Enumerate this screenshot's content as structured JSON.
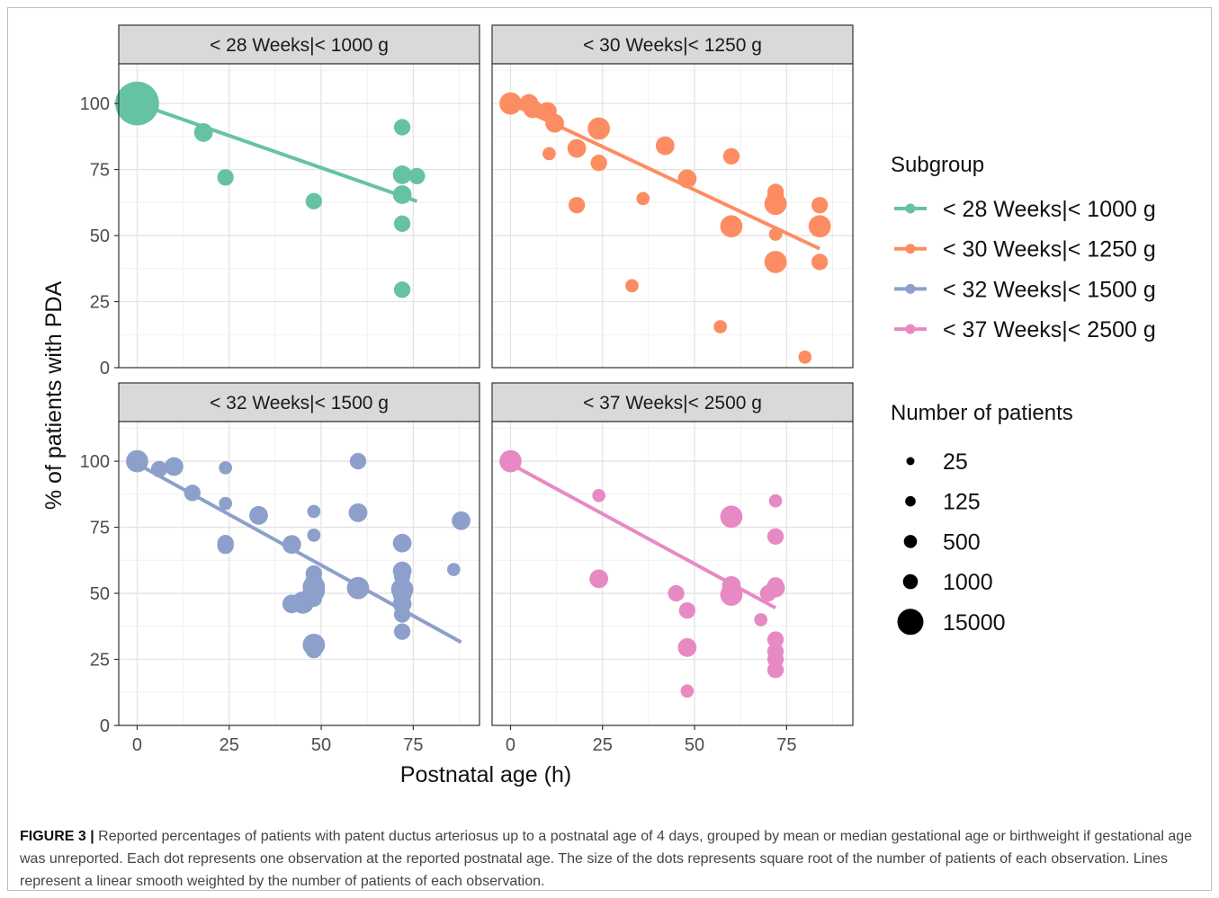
{
  "figure": {
    "caption_label": "FIGURE 3 |",
    "caption_text": "Reported percentages of patients with patent ductus arteriosus up to a postnatal age of 4 days, grouped by mean or median gestational age or birthweight if gestational age was unreported. Each dot represents one observation at the reported postnatal age. The size of the dots represents square root of the number of patients of each observation. Lines represent a linear smooth weighted by the number of patients of each observation."
  },
  "chart_data": {
    "type": "scatter",
    "xlabel": "Postnatal age (h)",
    "ylabel": "% of patients with PDA",
    "xlim": [
      -5,
      93
    ],
    "ylim": [
      0,
      115
    ],
    "x_ticks": [
      0,
      25,
      50,
      75
    ],
    "y_ticks": [
      0,
      25,
      50,
      75,
      100
    ],
    "grid": true,
    "legend_position": "right",
    "legend": {
      "color_title": "Subgroup",
      "size_title": "Number of patients",
      "size_levels": [
        25,
        125,
        500,
        1000,
        15000
      ]
    },
    "panels": [
      {
        "title": "< 28 Weeks|< 1000 g",
        "color": "#66c2a5",
        "fit": [
          [
            0,
            100
          ],
          [
            76,
            63
          ]
        ],
        "points": [
          {
            "x": 0,
            "y": 100,
            "n": 15000
          },
          {
            "x": 18,
            "y": 89,
            "n": 500
          },
          {
            "x": 24,
            "y": 72,
            "n": 300
          },
          {
            "x": 48,
            "y": 63,
            "n": 300
          },
          {
            "x": 72,
            "y": 91,
            "n": 300
          },
          {
            "x": 72,
            "y": 73,
            "n": 500
          },
          {
            "x": 76,
            "y": 72.5,
            "n": 300
          },
          {
            "x": 72,
            "y": 65.5,
            "n": 500
          },
          {
            "x": 72,
            "y": 54.5,
            "n": 300
          },
          {
            "x": 72,
            "y": 29.5,
            "n": 300
          }
        ]
      },
      {
        "title": "< 30 Weeks|< 1250 g",
        "color": "#fc8d62",
        "fit": [
          [
            0,
            100
          ],
          [
            84,
            45
          ]
        ],
        "points": [
          {
            "x": 0,
            "y": 100,
            "n": 1000
          },
          {
            "x": 5,
            "y": 100,
            "n": 500
          },
          {
            "x": 6,
            "y": 98,
            "n": 500
          },
          {
            "x": 10,
            "y": 97,
            "n": 500
          },
          {
            "x": 12,
            "y": 92.5,
            "n": 500
          },
          {
            "x": 10.5,
            "y": 81,
            "n": 125
          },
          {
            "x": 24,
            "y": 90.5,
            "n": 1000
          },
          {
            "x": 18,
            "y": 83,
            "n": 500
          },
          {
            "x": 24,
            "y": 77.5,
            "n": 300
          },
          {
            "x": 18,
            "y": 61.5,
            "n": 300
          },
          {
            "x": 36,
            "y": 64,
            "n": 125
          },
          {
            "x": 42,
            "y": 84,
            "n": 500
          },
          {
            "x": 48,
            "y": 71.5,
            "n": 500
          },
          {
            "x": 60,
            "y": 80,
            "n": 300
          },
          {
            "x": 60,
            "y": 53.5,
            "n": 1000
          },
          {
            "x": 33,
            "y": 31,
            "n": 125
          },
          {
            "x": 57,
            "y": 15.5,
            "n": 125
          },
          {
            "x": 72,
            "y": 66.5,
            "n": 300
          },
          {
            "x": 72,
            "y": 65,
            "n": 300
          },
          {
            "x": 72,
            "y": 62,
            "n": 1000
          },
          {
            "x": 72,
            "y": 50.5,
            "n": 125
          },
          {
            "x": 72,
            "y": 40,
            "n": 1000
          },
          {
            "x": 84,
            "y": 61.5,
            "n": 300
          },
          {
            "x": 84,
            "y": 53.5,
            "n": 1000
          },
          {
            "x": 84,
            "y": 40,
            "n": 300
          },
          {
            "x": 80,
            "y": 4,
            "n": 125
          }
        ]
      },
      {
        "title": "< 32 Weeks|< 1500 g",
        "color": "#8da0cb",
        "fit": [
          [
            0,
            99
          ],
          [
            88,
            31.5
          ]
        ],
        "points": [
          {
            "x": 0,
            "y": 100,
            "n": 1000
          },
          {
            "x": 6,
            "y": 97,
            "n": 300
          },
          {
            "x": 10,
            "y": 98,
            "n": 500
          },
          {
            "x": 24,
            "y": 97.5,
            "n": 125
          },
          {
            "x": 15,
            "y": 88,
            "n": 300
          },
          {
            "x": 24,
            "y": 84,
            "n": 125
          },
          {
            "x": 33,
            "y": 79.5,
            "n": 500
          },
          {
            "x": 24,
            "y": 69,
            "n": 300
          },
          {
            "x": 24,
            "y": 68,
            "n": 300
          },
          {
            "x": 42,
            "y": 68.5,
            "n": 500
          },
          {
            "x": 42,
            "y": 46,
            "n": 500
          },
          {
            "x": 45,
            "y": 46.5,
            "n": 1000
          },
          {
            "x": 48,
            "y": 81,
            "n": 125
          },
          {
            "x": 48,
            "y": 72,
            "n": 125
          },
          {
            "x": 48,
            "y": 57.5,
            "n": 300
          },
          {
            "x": 48,
            "y": 55,
            "n": 300
          },
          {
            "x": 48,
            "y": 52.5,
            "n": 1000
          },
          {
            "x": 48,
            "y": 51,
            "n": 1000
          },
          {
            "x": 48,
            "y": 48,
            "n": 300
          },
          {
            "x": 48,
            "y": 30.5,
            "n": 1000
          },
          {
            "x": 48,
            "y": 28.5,
            "n": 300
          },
          {
            "x": 60,
            "y": 100,
            "n": 300
          },
          {
            "x": 60,
            "y": 80.5,
            "n": 500
          },
          {
            "x": 60,
            "y": 52,
            "n": 1000
          },
          {
            "x": 72,
            "y": 69,
            "n": 500
          },
          {
            "x": 72,
            "y": 58.5,
            "n": 500
          },
          {
            "x": 72,
            "y": 56.5,
            "n": 300
          },
          {
            "x": 72,
            "y": 51.5,
            "n": 1000
          },
          {
            "x": 72,
            "y": 49.5,
            "n": 500
          },
          {
            "x": 72,
            "y": 46,
            "n": 500
          },
          {
            "x": 72,
            "y": 42,
            "n": 300
          },
          {
            "x": 72,
            "y": 35.5,
            "n": 300
          },
          {
            "x": 86,
            "y": 59,
            "n": 125
          },
          {
            "x": 88,
            "y": 77.5,
            "n": 500
          }
        ]
      },
      {
        "title": "< 37 Weeks|< 2500 g",
        "color": "#e78ac3",
        "fit": [
          [
            0,
            99
          ],
          [
            72,
            44.5
          ]
        ],
        "points": [
          {
            "x": 0,
            "y": 100,
            "n": 1000
          },
          {
            "x": 24,
            "y": 87,
            "n": 125
          },
          {
            "x": 24,
            "y": 55.5,
            "n": 500
          },
          {
            "x": 45,
            "y": 50,
            "n": 300
          },
          {
            "x": 48,
            "y": 43.5,
            "n": 300
          },
          {
            "x": 48,
            "y": 29.5,
            "n": 500
          },
          {
            "x": 48,
            "y": 13,
            "n": 125
          },
          {
            "x": 60,
            "y": 79,
            "n": 1000
          },
          {
            "x": 60,
            "y": 53,
            "n": 500
          },
          {
            "x": 60,
            "y": 49.5,
            "n": 1000
          },
          {
            "x": 68,
            "y": 40,
            "n": 125
          },
          {
            "x": 70,
            "y": 50,
            "n": 300
          },
          {
            "x": 72,
            "y": 85,
            "n": 125
          },
          {
            "x": 72,
            "y": 71.5,
            "n": 300
          },
          {
            "x": 72,
            "y": 53,
            "n": 300
          },
          {
            "x": 72,
            "y": 52,
            "n": 500
          },
          {
            "x": 72,
            "y": 32.5,
            "n": 300
          },
          {
            "x": 72,
            "y": 28,
            "n": 300
          },
          {
            "x": 72,
            "y": 25,
            "n": 300
          },
          {
            "x": 72,
            "y": 21,
            "n": 300
          }
        ]
      }
    ]
  }
}
